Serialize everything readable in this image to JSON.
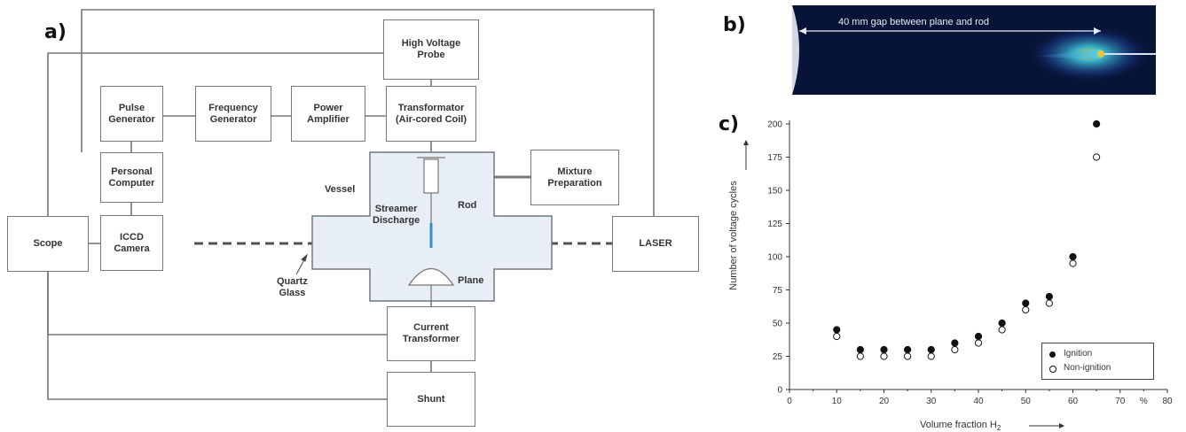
{
  "panels": {
    "a": "a)",
    "b": "b)",
    "c": "c)"
  },
  "diagram": {
    "boxes": {
      "hv_probe": "High Voltage\nProbe",
      "pulse_gen": "Pulse\nGenerator",
      "freq_gen": "Frequency\nGenerator",
      "power_amp": "Power\nAmplifier",
      "transformator": "Transformator\n(Air-cored Coil)",
      "pc": "Personal\nComputer",
      "mixture": "Mixture\nPreparation",
      "scope": "Scope",
      "iccd": "ICCD\nCamera",
      "laser": "LASER",
      "current_transformer": "Current\nTransformer",
      "shunt": "Shunt"
    },
    "labels": {
      "vessel": "Vessel",
      "rod": "Rod",
      "streamer": "Streamer\nDischarge",
      "plane": "Plane",
      "quartz": "Quartz\nGlass"
    }
  },
  "photo": {
    "gap_label": "40 mm gap between plane and rod"
  },
  "chart_data": {
    "type": "scatter",
    "xlabel": "Volume fraction H",
    "xlabel_sub": "2",
    "ylabel": "Number of voltage cycles",
    "xlim": [
      0,
      80
    ],
    "ylim": [
      0,
      200
    ],
    "x_ticks": [
      "0",
      "10",
      "20",
      "30",
      "40",
      "50",
      "60",
      "70",
      "%",
      "80"
    ],
    "y_ticks": [
      "0",
      "25",
      "50",
      "75",
      "100",
      "125",
      "150",
      "175",
      "200"
    ],
    "legend_position": "bottom-right",
    "series": [
      {
        "name": "Ignition",
        "marker": "filled-circle",
        "x": [
          10,
          15,
          20,
          25,
          30,
          35,
          40,
          45,
          50,
          55,
          60,
          65
        ],
        "y": [
          45,
          30,
          30,
          30,
          30,
          35,
          40,
          50,
          65,
          70,
          100,
          200
        ]
      },
      {
        "name": "Non-ignition",
        "marker": "open-circle",
        "x": [
          10,
          15,
          20,
          25,
          30,
          35,
          40,
          45,
          50,
          55,
          60,
          65
        ],
        "y": [
          40,
          25,
          25,
          25,
          25,
          30,
          35,
          45,
          60,
          65,
          95,
          175
        ]
      }
    ]
  }
}
